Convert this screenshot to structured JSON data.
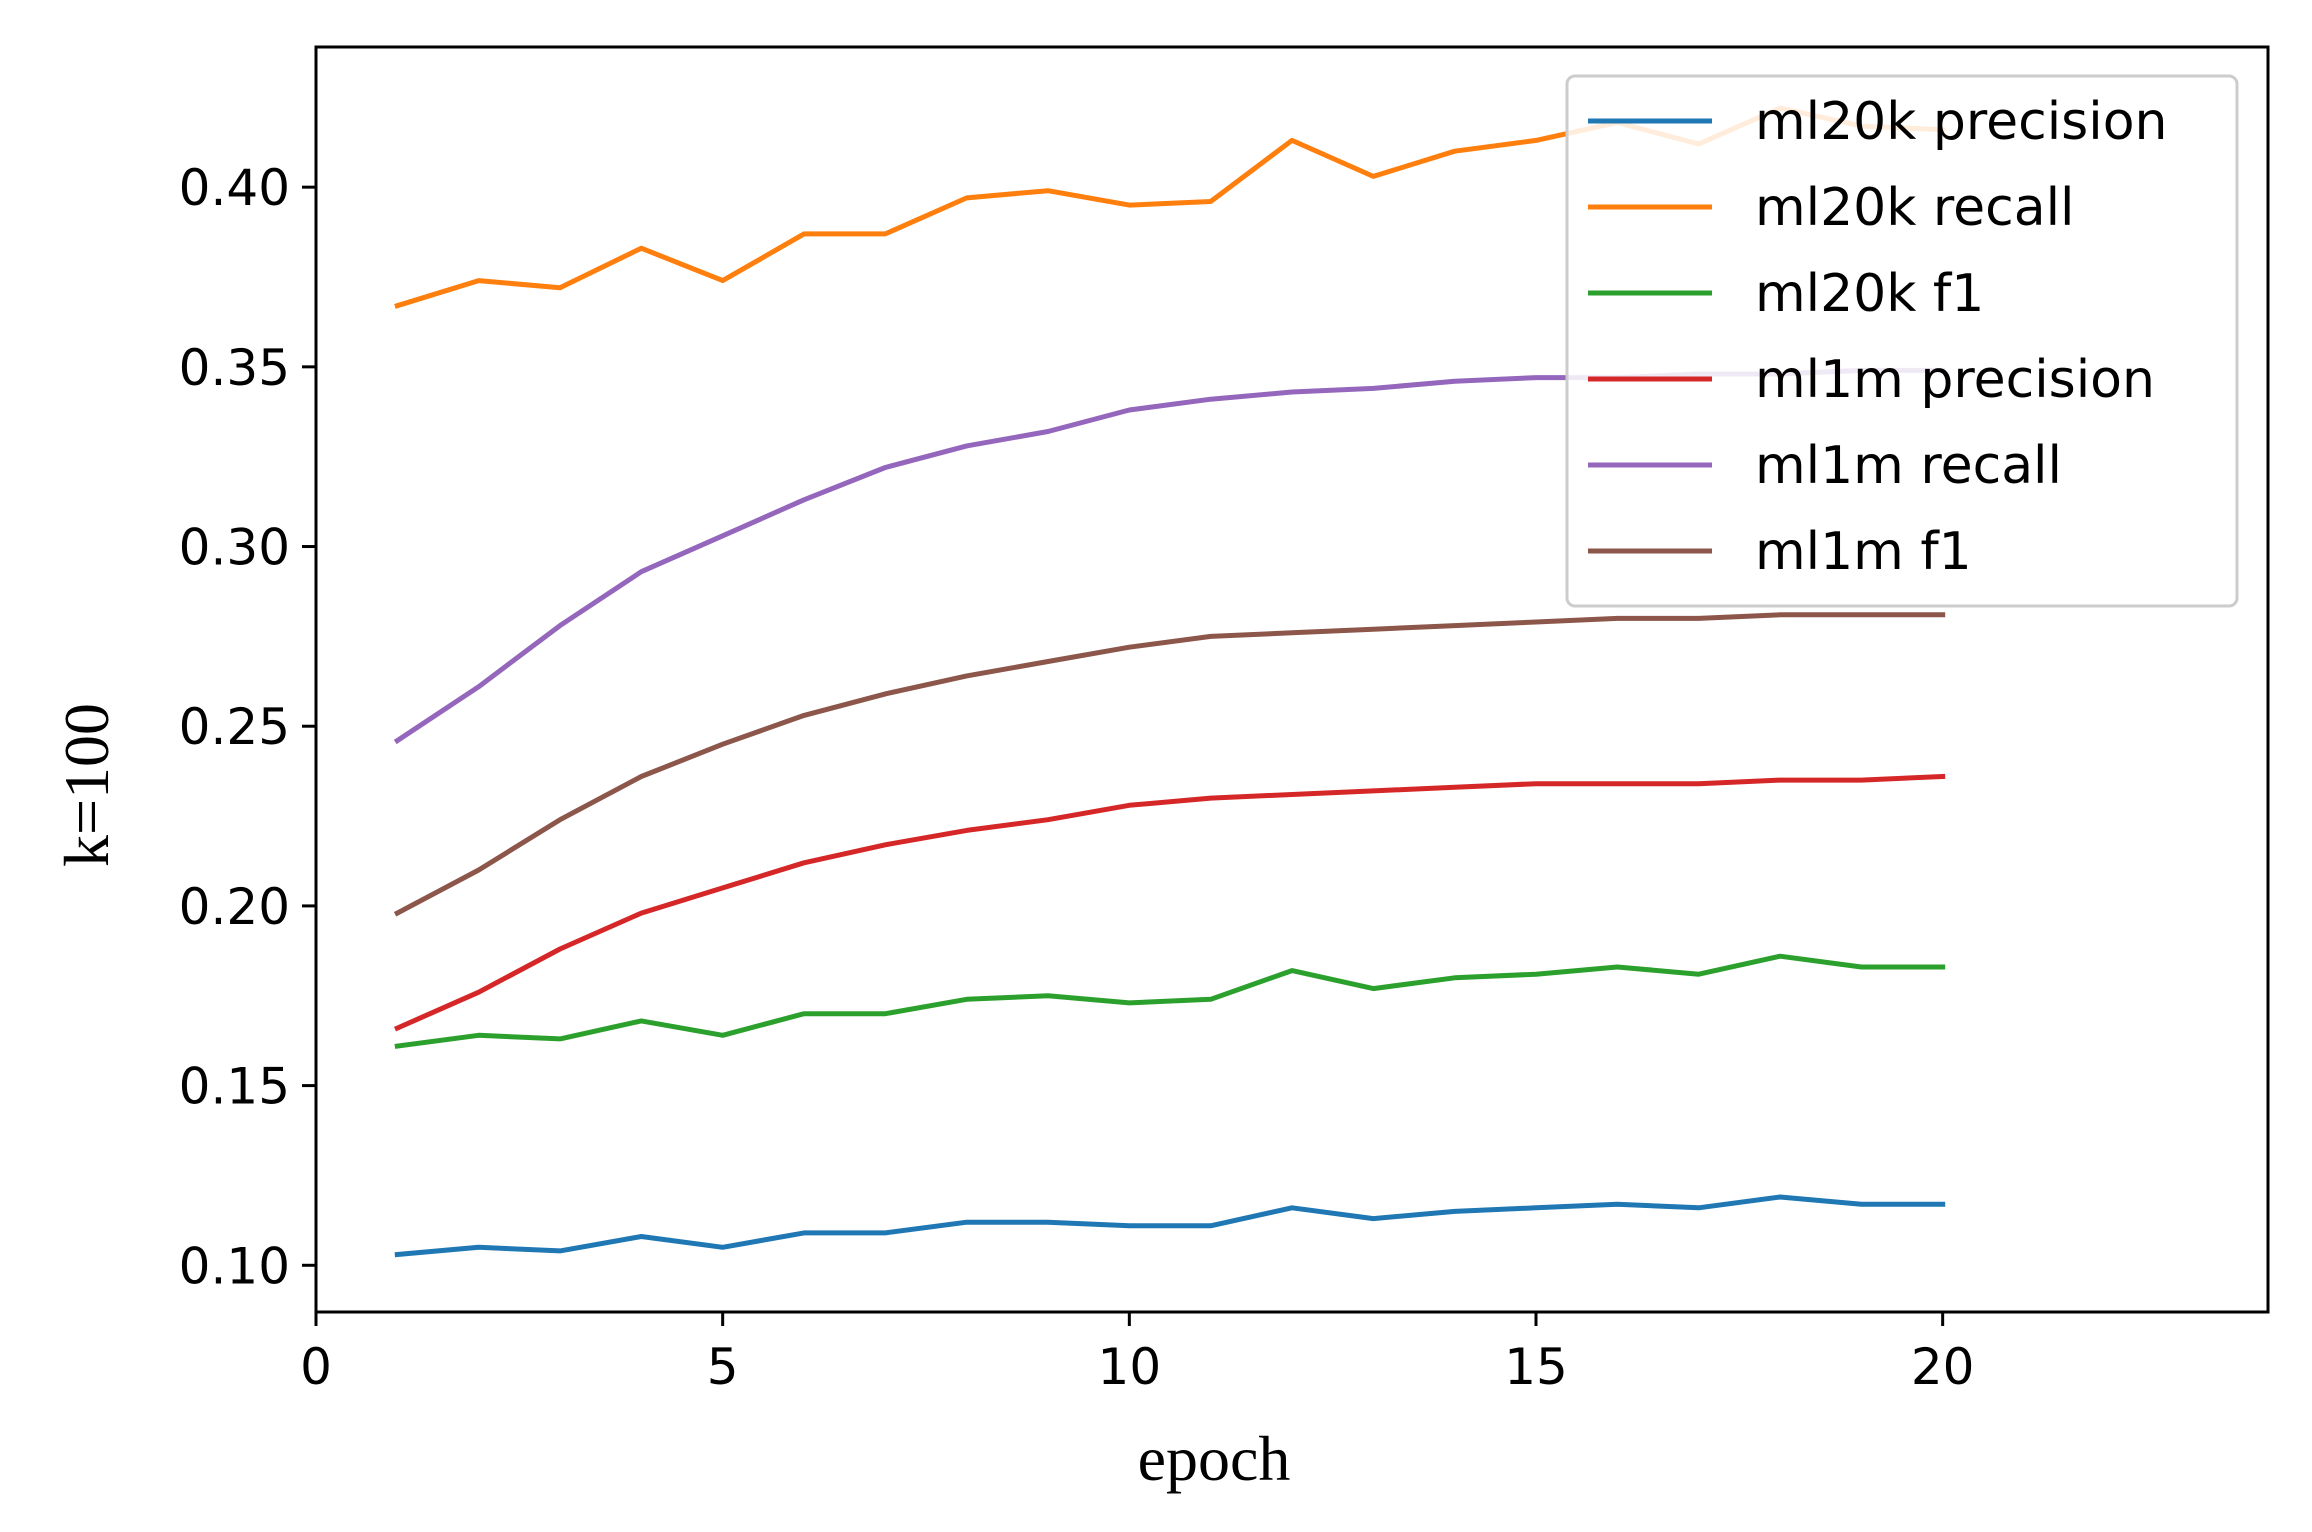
{
  "chart_data": {
    "type": "line",
    "title": "",
    "xlabel": "epoch",
    "ylabel": "k=100",
    "xlim": [
      0,
      24
    ],
    "ylim": [
      0.087,
      0.439
    ],
    "xticks": [
      0,
      5,
      10,
      15,
      20
    ],
    "xtick_labels": [
      "0",
      "5",
      "10",
      "15",
      "20"
    ],
    "yticks": [
      0.1,
      0.15,
      0.2,
      0.25,
      0.3,
      0.35,
      0.4
    ],
    "ytick_labels": [
      "0.10",
      "0.15",
      "0.20",
      "0.25",
      "0.30",
      "0.35",
      "0.40"
    ],
    "grid": false,
    "legend_position": "top-right",
    "x": [
      1,
      2,
      3,
      4,
      5,
      6,
      7,
      8,
      9,
      10,
      11,
      12,
      13,
      14,
      15,
      16,
      17,
      18,
      19,
      20
    ],
    "series": [
      {
        "name": "ml20k precision",
        "color": "#1f77b4",
        "values": [
          0.103,
          0.105,
          0.104,
          0.108,
          0.105,
          0.109,
          0.109,
          0.112,
          0.112,
          0.111,
          0.111,
          0.116,
          0.113,
          0.115,
          0.116,
          0.117,
          0.116,
          0.119,
          0.117,
          0.117
        ]
      },
      {
        "name": "ml20k recall",
        "color": "#ff7f0e",
        "values": [
          0.367,
          0.374,
          0.372,
          0.383,
          0.374,
          0.387,
          0.387,
          0.397,
          0.399,
          0.395,
          0.396,
          0.413,
          0.403,
          0.41,
          0.413,
          0.418,
          0.412,
          0.422,
          0.417,
          0.416
        ]
      },
      {
        "name": "ml20k f1",
        "color": "#2ca02c",
        "values": [
          0.161,
          0.164,
          0.163,
          0.168,
          0.164,
          0.17,
          0.17,
          0.174,
          0.175,
          0.173,
          0.174,
          0.182,
          0.177,
          0.18,
          0.181,
          0.183,
          0.181,
          0.186,
          0.183,
          0.183
        ]
      },
      {
        "name": "ml1m precision",
        "color": "#d62728",
        "values": [
          0.166,
          0.176,
          0.188,
          0.198,
          0.205,
          0.212,
          0.217,
          0.221,
          0.224,
          0.228,
          0.23,
          0.231,
          0.232,
          0.233,
          0.234,
          0.234,
          0.234,
          0.235,
          0.235,
          0.236
        ]
      },
      {
        "name": "ml1m recall",
        "color": "#9467bd",
        "values": [
          0.246,
          0.261,
          0.278,
          0.293,
          0.303,
          0.313,
          0.322,
          0.328,
          0.332,
          0.338,
          0.341,
          0.343,
          0.344,
          0.346,
          0.347,
          0.347,
          0.348,
          0.348,
          0.349,
          0.349
        ]
      },
      {
        "name": "ml1m f1",
        "color": "#8c564b",
        "values": [
          0.198,
          0.21,
          0.224,
          0.236,
          0.245,
          0.253,
          0.259,
          0.264,
          0.268,
          0.272,
          0.275,
          0.276,
          0.277,
          0.278,
          0.279,
          0.28,
          0.28,
          0.281,
          0.281,
          0.281
        ]
      }
    ]
  }
}
